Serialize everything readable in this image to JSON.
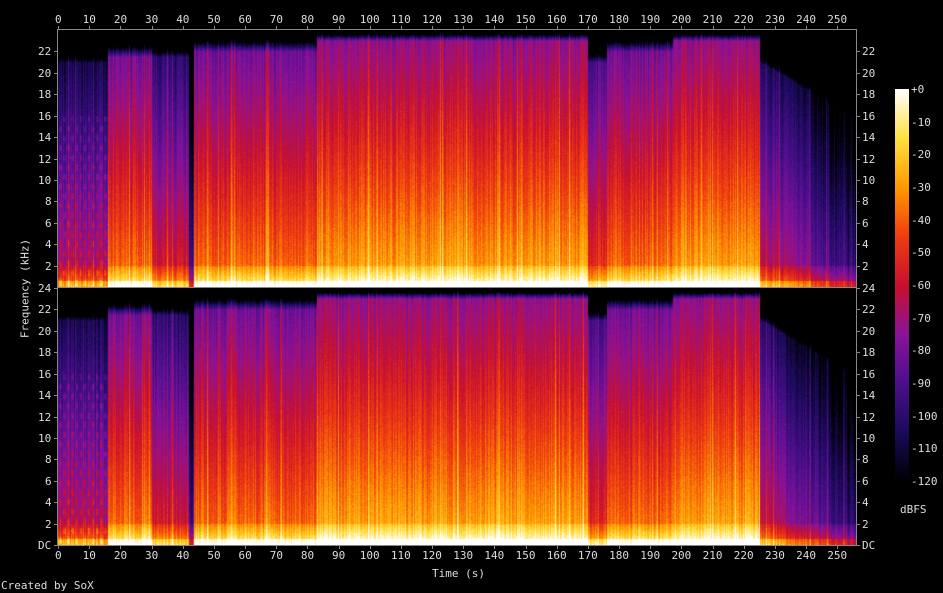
{
  "chart_data": {
    "type": "heatmap",
    "title": "",
    "xlabel": "Time (s)",
    "ylabel": "Frequency (kHz)",
    "channels": 2,
    "xlim": [
      0,
      256
    ],
    "ylim": [
      0,
      24
    ],
    "x_ticks": [
      0,
      10,
      20,
      30,
      40,
      50,
      60,
      70,
      80,
      90,
      100,
      110,
      120,
      130,
      140,
      150,
      160,
      170,
      180,
      190,
      200,
      210,
      220,
      230,
      240,
      250
    ],
    "y_ticks_top": [
      "2",
      "4",
      "6",
      "8",
      "10",
      "12",
      "14",
      "16",
      "18",
      "20",
      "22",
      "24"
    ],
    "y_ticks_bottom": [
      "DC",
      "2",
      "4",
      "6",
      "8",
      "10",
      "12",
      "14",
      "16",
      "18",
      "20",
      "22",
      "24"
    ],
    "colorbar": {
      "label": "dBFS",
      "range": [
        -120,
        0
      ],
      "ticks": [
        "+0",
        "-10",
        "-20",
        "-30",
        "-40",
        "-50",
        "-60",
        "-70",
        "-80",
        "-90",
        "-100",
        "-110",
        "-120"
      ]
    },
    "colormap": [
      "#000000",
      "#1a0a5a",
      "#4b0f8c",
      "#8a129a",
      "#c8102e",
      "#f03c10",
      "#ff9a00",
      "#ffe040",
      "#ffffff"
    ]
  },
  "footer": "Created by SoX"
}
